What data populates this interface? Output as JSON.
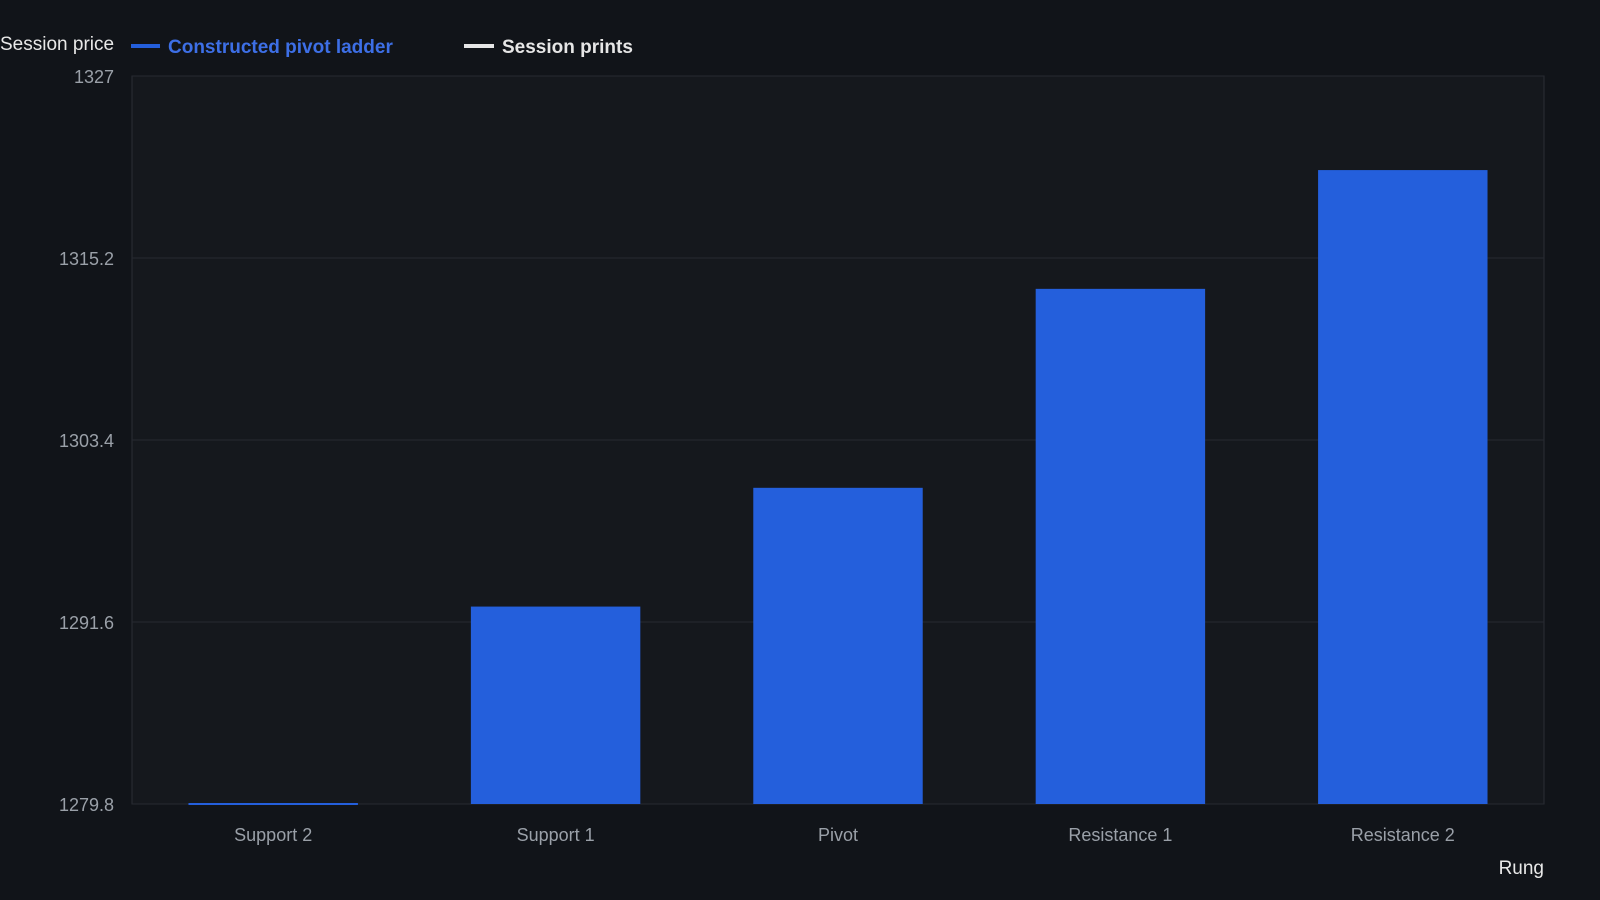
{
  "chart_data": {
    "type": "bar",
    "categories": [
      "Support 2",
      "Support 1",
      "Pivot",
      "Resistance 1",
      "Resistance 2"
    ],
    "series": [
      {
        "name": "Constructed pivot ladder",
        "values": [
          1279.8,
          1292.6,
          1300.3,
          1313.2,
          1320.9
        ]
      }
    ],
    "legend": [
      {
        "label": "Constructed pivot ladder",
        "color": "#245fdc",
        "text_color": "#3d6fe6"
      },
      {
        "label": "Session prints",
        "color": "#e6e6e6",
        "text_color": "#e6e6e6"
      }
    ],
    "legend_placement": "top-left",
    "ylabel": "Session price",
    "xlabel": "Rung",
    "ylim": [
      1279.8,
      1327
    ],
    "yticks": [
      "1279.8",
      "1291.6",
      "1303.4",
      "1315.2",
      "1327"
    ],
    "grid": true,
    "bar_color": "#245fdc",
    "background": "#111419",
    "plot_background": "#15181d"
  }
}
